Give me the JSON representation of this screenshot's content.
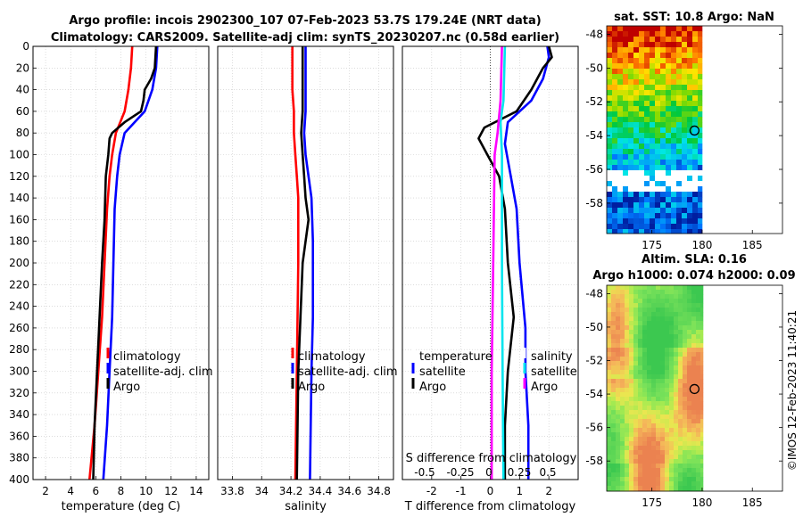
{
  "header": {
    "title_line1": "Argo profile: incois 2902300_107 07-Feb-2023 53.7S 179.24E (NRT data)",
    "title_line2": "Climatology: CARS2009. Satellite-adj clim: synTS_20230207.nc (0.58d earlier)"
  },
  "copyright": "©IMOS 12-Feb-2023 11:40:21",
  "colors": {
    "climatology": "#ff0000",
    "satellite": "#0000ff",
    "argo": "#000000",
    "cyan": "#00e5ee",
    "magenta": "#ff00ff"
  },
  "chart_data": [
    {
      "type": "line",
      "name": "temperature",
      "xlabel": "temperature (deg C)",
      "ylabel": "depth",
      "xlim": [
        1,
        15
      ],
      "ylim": [
        0,
        400
      ],
      "xticks": [
        2,
        4,
        6,
        8,
        10,
        12,
        14
      ],
      "yticks": [
        0,
        20,
        40,
        60,
        80,
        100,
        120,
        140,
        160,
        180,
        200,
        220,
        240,
        260,
        280,
        300,
        320,
        340,
        360,
        380,
        400
      ],
      "legend": [
        "climatology",
        "satellite-adj. clim",
        "Argo"
      ],
      "series": [
        {
          "name": "climatology",
          "color": "#ff0000",
          "depth": [
            0,
            20,
            40,
            60,
            80,
            100,
            120,
            150,
            200,
            250,
            300,
            350,
            400
          ],
          "values": [
            8.9,
            8.8,
            8.6,
            8.3,
            7.6,
            7.3,
            7.1,
            6.9,
            6.7,
            6.5,
            6.2,
            5.9,
            5.5
          ]
        },
        {
          "name": "satellite-adj. clim",
          "color": "#0000ff",
          "depth": [
            0,
            20,
            40,
            60,
            80,
            100,
            120,
            150,
            200,
            250,
            300,
            350,
            400
          ],
          "values": [
            10.9,
            10.8,
            10.5,
            9.9,
            8.3,
            7.9,
            7.7,
            7.5,
            7.4,
            7.3,
            7.1,
            6.9,
            6.6
          ]
        },
        {
          "name": "Argo",
          "color": "#000000",
          "depth": [
            0,
            20,
            30,
            40,
            50,
            60,
            70,
            80,
            85,
            100,
            120,
            160,
            200,
            250,
            300,
            350,
            400
          ],
          "values": [
            10.8,
            10.7,
            10.4,
            9.9,
            9.8,
            9.6,
            8.3,
            7.3,
            7.1,
            7.0,
            6.8,
            6.7,
            6.5,
            6.3,
            6.1,
            5.9,
            5.8
          ]
        }
      ]
    },
    {
      "type": "line",
      "name": "salinity",
      "xlabel": "salinity",
      "ylabel": "",
      "xlim": [
        33.7,
        34.9
      ],
      "ylim": [
        0,
        400
      ],
      "xticks": [
        "33.8",
        "34",
        "34.2",
        "34.4",
        "34.6",
        "34.8"
      ],
      "legend": [
        "climatology",
        "satellite-adj. clim",
        "Argo"
      ],
      "series": [
        {
          "name": "climatology",
          "color": "#ff0000",
          "depth": [
            0,
            40,
            60,
            80,
            100,
            120,
            140,
            200,
            300,
            400
          ],
          "values": [
            34.21,
            34.21,
            34.22,
            34.22,
            34.23,
            34.24,
            34.25,
            34.25,
            34.24,
            34.23
          ]
        },
        {
          "name": "satellite-adj. clim",
          "color": "#0000ff",
          "depth": [
            0,
            40,
            60,
            80,
            100,
            140,
            180,
            250,
            300,
            400
          ],
          "values": [
            34.3,
            34.3,
            34.3,
            34.29,
            34.3,
            34.34,
            34.35,
            34.35,
            34.34,
            34.33
          ]
        },
        {
          "name": "Argo",
          "color": "#000000",
          "depth": [
            0,
            40,
            60,
            80,
            100,
            120,
            140,
            160,
            200,
            300,
            400
          ],
          "values": [
            34.28,
            34.28,
            34.28,
            34.27,
            34.28,
            34.29,
            34.3,
            34.32,
            34.28,
            34.25,
            34.24
          ]
        }
      ]
    },
    {
      "type": "line",
      "name": "difference",
      "xlabel": "T difference from climatology",
      "ylabel": "",
      "xlabel_top": "S difference from climatology",
      "xlim": [
        -3,
        3
      ],
      "ylim": [
        0,
        400
      ],
      "xticks": [
        "-2",
        "-1",
        "0",
        "1",
        "2"
      ],
      "xticks_top": [
        "-0.5",
        "-0.25",
        "0",
        "0.25",
        "0.5"
      ],
      "legend_left": [
        "temperature",
        "satellite",
        "Argo"
      ],
      "legend_right": [
        "salinity",
        "satellite",
        "Argo"
      ],
      "series": [
        {
          "name": "T satellite",
          "color": "#0000ff",
          "depth": [
            0,
            10,
            30,
            50,
            70,
            90,
            120,
            150,
            200,
            260,
            300,
            350,
            400
          ],
          "values": [
            1.95,
            2.0,
            1.8,
            1.4,
            0.6,
            0.5,
            0.7,
            0.9,
            1.0,
            1.2,
            1.2,
            1.3,
            1.3
          ]
        },
        {
          "name": "T Argo",
          "color": "#000000",
          "depth": [
            0,
            10,
            20,
            40,
            60,
            75,
            80,
            85,
            100,
            120,
            150,
            200,
            250,
            300,
            350,
            400
          ],
          "values": [
            2.0,
            2.1,
            1.8,
            1.4,
            0.9,
            -0.2,
            -0.3,
            -0.4,
            -0.1,
            0.3,
            0.5,
            0.6,
            0.8,
            0.6,
            0.5,
            0.5
          ]
        },
        {
          "name": "S satellite",
          "color": "#00e5ee",
          "depth": [
            0,
            50,
            70,
            100,
            200,
            300,
            400
          ],
          "values": [
            0.5,
            0.45,
            0.35,
            0.4,
            0.4,
            0.42,
            0.45
          ]
        },
        {
          "name": "S Argo",
          "color": "#ff00ff",
          "depth": [
            0,
            50,
            80,
            100,
            200,
            300,
            400
          ],
          "values": [
            0.4,
            0.35,
            0.25,
            0.15,
            0.1,
            0.05,
            0.05
          ]
        }
      ]
    },
    {
      "type": "heatmap",
      "name": "sst_map",
      "title": "sat. SST: 10.8 Argo: NaN",
      "xticks": [
        "175",
        "180",
        "185"
      ],
      "yticks": [
        "-48",
        "-50",
        "-52",
        "-54",
        "-56",
        "-58"
      ],
      "xlim": [
        170.5,
        188
      ],
      "ylim": [
        -59.8,
        -47.5
      ],
      "marker": {
        "lon": 179.24,
        "lat": -53.7
      }
    },
    {
      "type": "heatmap",
      "name": "sla_map",
      "title_line1": "Altim. SLA: 0.16",
      "title_line2": "Argo h1000: 0.074 h2000: 0.09",
      "xticks": [
        "175",
        "180",
        "185"
      ],
      "yticks": [
        "-48",
        "-50",
        "-52",
        "-54",
        "-56",
        "-58"
      ],
      "xlim": [
        170.5,
        188
      ],
      "ylim": [
        -59.8,
        -47.5
      ],
      "marker": {
        "lon": 179.24,
        "lat": -53.7
      }
    }
  ]
}
